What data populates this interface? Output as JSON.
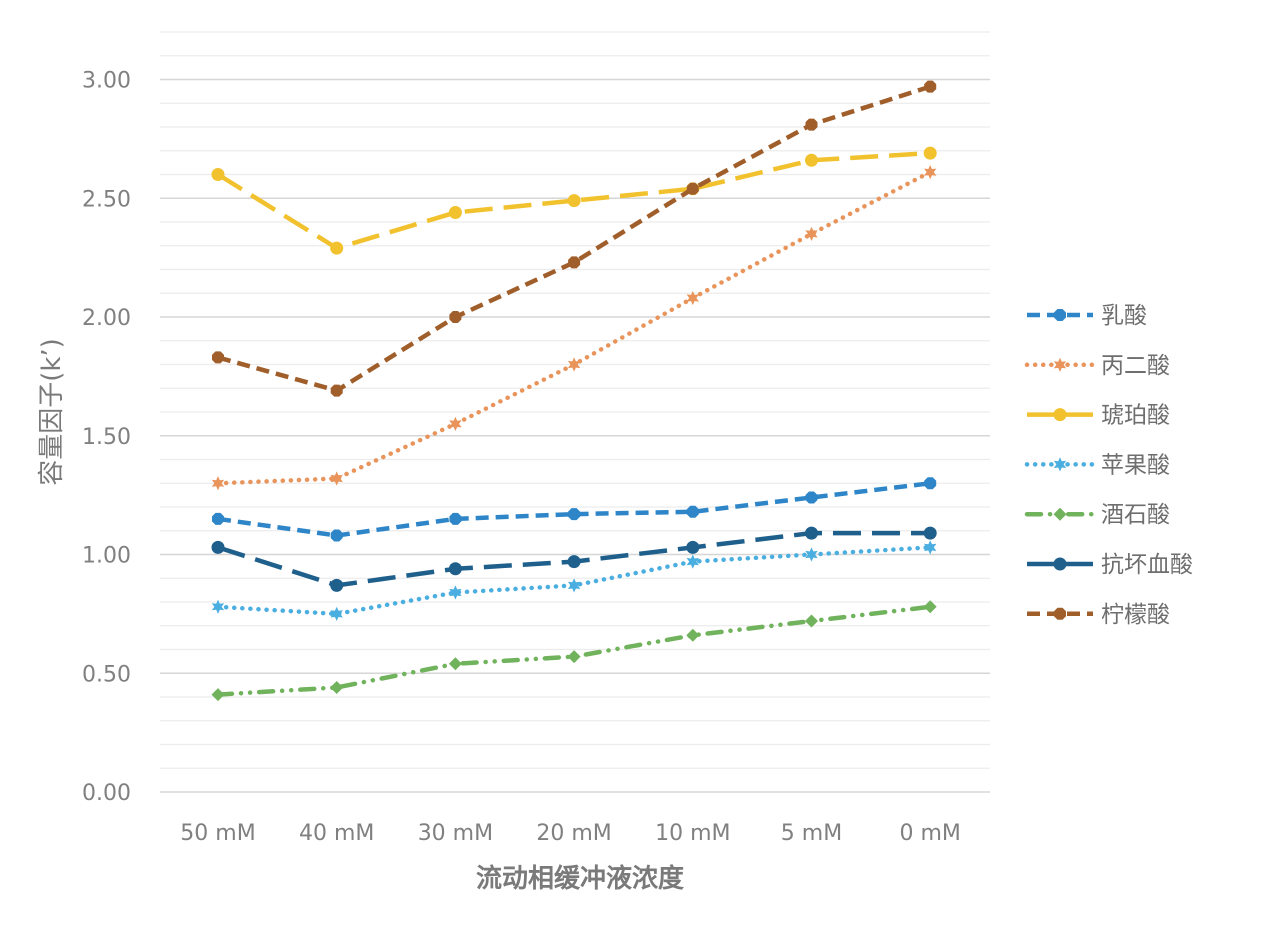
{
  "chart_data": {
    "type": "line",
    "title": "",
    "xlabel": "流动相缓冲液浓度",
    "ylabel": "容量因子(k’)",
    "categories": [
      "50 mM",
      "40 mM",
      "30 mM",
      "20 mM",
      "10 mM",
      "5 mM",
      "0 mM"
    ],
    "ylim": [
      0,
      3.2
    ],
    "yticks": [
      0.0,
      0.5,
      1.0,
      1.5,
      2.0,
      2.5,
      3.0
    ],
    "ytick_labels": [
      "0.00",
      "0.50",
      "1.00",
      "1.50",
      "2.00",
      "2.50",
      "3.00"
    ],
    "grid": "major and minor horizontal",
    "legend_position": "right",
    "series": [
      {
        "name": "乳酸",
        "color": "#2e86c8",
        "dash": "dash",
        "marker": "octagon",
        "values": [
          1.15,
          1.08,
          1.15,
          1.17,
          1.18,
          1.24,
          1.3
        ]
      },
      {
        "name": "丙二酸",
        "color": "#e8945a",
        "dash": "dot",
        "marker": "star",
        "values": [
          1.3,
          1.32,
          1.55,
          1.8,
          2.08,
          2.35,
          2.61
        ]
      },
      {
        "name": "琥珀酸",
        "color": "#f2c12e",
        "dash": "longdash",
        "marker": "circle",
        "values": [
          2.6,
          2.29,
          2.44,
          2.49,
          2.54,
          2.66,
          2.69
        ]
      },
      {
        "name": "苹果酸",
        "color": "#4aaee0",
        "dash": "dot",
        "marker": "star",
        "values": [
          0.78,
          0.75,
          0.84,
          0.87,
          0.97,
          1.0,
          1.03
        ]
      },
      {
        "name": "酒石酸",
        "color": "#71b35c",
        "dash": "dashdotdot",
        "marker": "diamond",
        "values": [
          0.41,
          0.44,
          0.54,
          0.57,
          0.66,
          0.72,
          0.78
        ]
      },
      {
        "name": "抗坏血酸",
        "color": "#1f5f8c",
        "dash": "longdash",
        "marker": "circle",
        "values": [
          1.03,
          0.87,
          0.94,
          0.97,
          1.03,
          1.09,
          1.09
        ]
      },
      {
        "name": "柠檬酸",
        "color": "#a05e2b",
        "dash": "dash",
        "marker": "octagon",
        "values": [
          1.83,
          1.69,
          2.0,
          2.23,
          2.54,
          2.81,
          2.97
        ]
      }
    ]
  }
}
